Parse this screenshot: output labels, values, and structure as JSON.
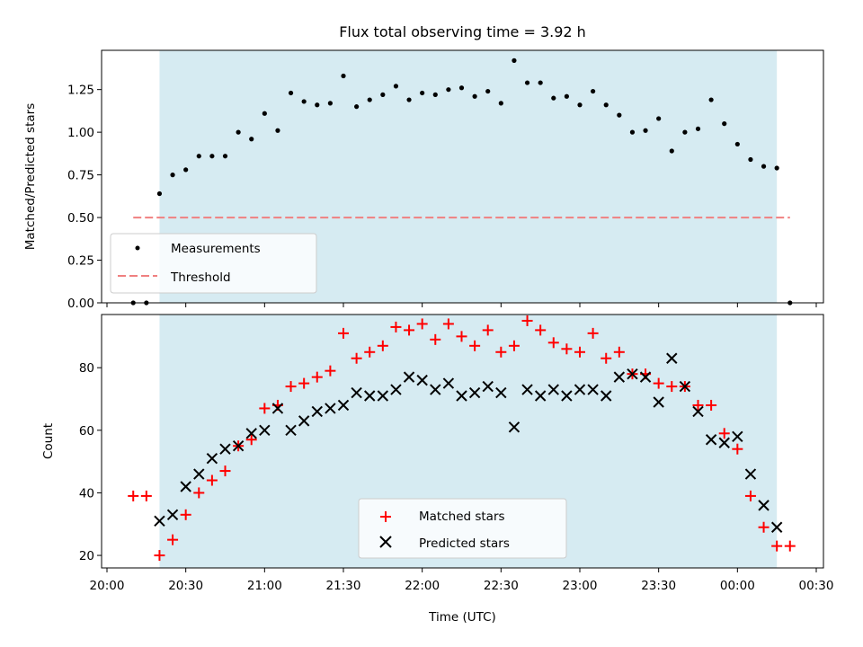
{
  "chart_data": [
    {
      "type": "scatter",
      "title": "Flux total observing time = 3.92 h",
      "xlabel": "",
      "ylabel": "Matched/Predicted stars",
      "ylim": [
        0,
        1.48
      ],
      "y_ticks": [
        "0.00",
        "0.25",
        "0.50",
        "0.75",
        "1.00",
        "1.25"
      ],
      "y_tick_values": [
        0,
        0.25,
        0.5,
        0.75,
        1.0,
        1.25
      ],
      "grid": false,
      "legend_placement": "lower-left",
      "shaded_span": {
        "start": "20:20",
        "end": "00:15",
        "color": "#add8e6"
      },
      "threshold": {
        "name": "Threshold",
        "value": 0.5,
        "x_start": "20:10",
        "x_end": "00:20",
        "color": "#f08080"
      },
      "series": [
        {
          "name": "Measurements",
          "color": "#000000",
          "x": [
            "20:10",
            "20:15",
            "20:20",
            "20:25",
            "20:30",
            "20:35",
            "20:40",
            "20:45",
            "20:50",
            "20:55",
            "21:00",
            "21:05",
            "21:10",
            "21:15",
            "21:20",
            "21:25",
            "21:30",
            "21:35",
            "21:40",
            "21:45",
            "21:50",
            "21:55",
            "22:00",
            "22:05",
            "22:10",
            "22:15",
            "22:20",
            "22:25",
            "22:30",
            "22:35",
            "22:40",
            "22:45",
            "22:50",
            "22:55",
            "23:00",
            "23:05",
            "23:10",
            "23:15",
            "23:20",
            "23:25",
            "23:30",
            "23:35",
            "23:40",
            "23:45",
            "23:50",
            "23:55",
            "00:00",
            "00:05",
            "00:10",
            "00:15",
            "00:20"
          ],
          "y": [
            0.0,
            0.0,
            0.64,
            0.75,
            0.78,
            0.86,
            0.86,
            0.86,
            1.0,
            0.96,
            1.11,
            1.01,
            1.23,
            1.18,
            1.16,
            1.17,
            1.33,
            1.15,
            1.19,
            1.22,
            1.27,
            1.19,
            1.23,
            1.22,
            1.25,
            1.26,
            1.21,
            1.24,
            1.17,
            1.42,
            1.29,
            1.29,
            1.2,
            1.21,
            1.16,
            1.24,
            1.16,
            1.1,
            1.0,
            1.01,
            1.08,
            0.89,
            1.0,
            1.02,
            1.19,
            1.05,
            0.93,
            0.84,
            0.8,
            0.79,
            0.0
          ]
        }
      ]
    },
    {
      "type": "scatter",
      "title": "",
      "xlabel": "Time (UTC)",
      "ylabel": "Count",
      "ylim": [
        16,
        97
      ],
      "x_ticks": [
        "20:00",
        "20:30",
        "21:00",
        "21:30",
        "22:00",
        "22:30",
        "23:00",
        "23:30",
        "00:00",
        "00:30"
      ],
      "y_ticks": [
        "20",
        "40",
        "60",
        "80"
      ],
      "y_tick_values": [
        20,
        40,
        60,
        80
      ],
      "grid": false,
      "legend_placement": "lower-center",
      "shaded_span": {
        "start": "20:20",
        "end": "00:15",
        "color": "#add8e6"
      },
      "series": [
        {
          "name": "Matched stars",
          "color": "#ff0000",
          "marker": "plus",
          "x": [
            "20:10",
            "20:15",
            "20:20",
            "20:25",
            "20:30",
            "20:35",
            "20:40",
            "20:45",
            "20:50",
            "20:55",
            "21:00",
            "21:05",
            "21:10",
            "21:15",
            "21:20",
            "21:25",
            "21:30",
            "21:35",
            "21:40",
            "21:45",
            "21:50",
            "21:55",
            "22:00",
            "22:05",
            "22:10",
            "22:15",
            "22:20",
            "22:25",
            "22:30",
            "22:35",
            "22:40",
            "22:45",
            "22:50",
            "22:55",
            "23:00",
            "23:05",
            "23:10",
            "23:15",
            "23:20",
            "23:25",
            "23:30",
            "23:35",
            "23:40",
            "23:45",
            "23:50",
            "23:55",
            "00:00",
            "00:05",
            "00:10",
            "00:15",
            "00:20"
          ],
          "y": [
            39,
            39,
            20,
            25,
            33,
            40,
            44,
            47,
            55,
            57,
            67,
            68,
            74,
            75,
            77,
            79,
            91,
            83,
            85,
            87,
            93,
            92,
            94,
            89,
            94,
            90,
            87,
            92,
            85,
            87,
            95,
            92,
            88,
            86,
            85,
            91,
            83,
            85,
            78,
            78,
            75,
            74,
            74,
            68,
            68,
            59,
            54,
            39,
            29,
            23,
            23
          ]
        },
        {
          "name": "Predicted stars",
          "color": "#000000",
          "marker": "x",
          "x": [
            "20:20",
            "20:25",
            "20:30",
            "20:35",
            "20:40",
            "20:45",
            "20:50",
            "20:55",
            "21:00",
            "21:05",
            "21:10",
            "21:15",
            "21:20",
            "21:25",
            "21:30",
            "21:35",
            "21:40",
            "21:45",
            "21:50",
            "21:55",
            "22:00",
            "22:05",
            "22:10",
            "22:15",
            "22:20",
            "22:25",
            "22:30",
            "22:35",
            "22:40",
            "22:45",
            "22:50",
            "22:55",
            "23:00",
            "23:05",
            "23:10",
            "23:15",
            "23:20",
            "23:25",
            "23:30",
            "23:35",
            "23:40",
            "23:45",
            "23:50",
            "23:55",
            "00:00",
            "00:05",
            "00:10",
            "00:15"
          ],
          "y": [
            31,
            33,
            42,
            46,
            51,
            54,
            55,
            59,
            60,
            67,
            60,
            63,
            66,
            67,
            68,
            72,
            71,
            71,
            73,
            77,
            76,
            73,
            75,
            71,
            72,
            74,
            72,
            61,
            73,
            71,
            73,
            71,
            73,
            73,
            71,
            77,
            78,
            77,
            69,
            83,
            74,
            66,
            57,
            56,
            58,
            46,
            36,
            29
          ]
        }
      ]
    }
  ]
}
